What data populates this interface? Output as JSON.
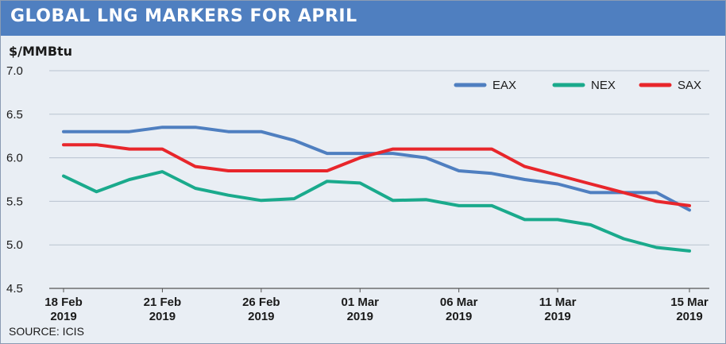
{
  "header": {
    "title": "GLOBAL LNG MARKERS FOR APRIL"
  },
  "source": "SOURCE: ICIS",
  "chart_data": {
    "type": "line",
    "title": "GLOBAL LNG MARKERS FOR APRIL",
    "ylabel": "$/MMBtu",
    "ylim": [
      4.5,
      7.0
    ],
    "yticks": [
      "7.0",
      "6.5",
      "6.0",
      "5.5",
      "5.0",
      "4.5"
    ],
    "grid": true,
    "legend_position": "top-right",
    "x": [
      "18 Feb 2019",
      "19 Feb 2019",
      "20 Feb 2019",
      "21 Feb 2019",
      "22 Feb 2019",
      "25 Feb 2019",
      "26 Feb 2019",
      "27 Feb 2019",
      "28 Feb 2019",
      "01 Mar 2019",
      "04 Mar 2019",
      "05 Mar 2019",
      "06 Mar 2019",
      "07 Mar 2019",
      "08 Mar 2019",
      "11 Mar 2019",
      "12 Mar 2019",
      "13 Mar 2019",
      "14 Mar 2019",
      "15 Mar 2019"
    ],
    "xticks": [
      {
        "day": "18 Feb",
        "year": "2019",
        "index": 0
      },
      {
        "day": "21 Feb",
        "year": "2019",
        "index": 3
      },
      {
        "day": "26 Feb",
        "year": "2019",
        "index": 6
      },
      {
        "day": "01 Mar",
        "year": "2019",
        "index": 9
      },
      {
        "day": "06 Mar",
        "year": "2019",
        "index": 12
      },
      {
        "day": "11 Mar",
        "year": "2019",
        "index": 15
      },
      {
        "day": "15 Mar",
        "year": "2019",
        "index": 19
      }
    ],
    "series": [
      {
        "name": "EAX",
        "color": "#4f7fc0",
        "values": [
          6.3,
          6.3,
          6.3,
          6.35,
          6.35,
          6.3,
          6.3,
          6.2,
          6.05,
          6.05,
          6.05,
          6.0,
          5.85,
          5.82,
          5.75,
          5.7,
          5.6,
          5.6,
          5.6,
          5.4
        ]
      },
      {
        "name": "NEX",
        "color": "#1aaa8c",
        "values": [
          5.79,
          5.61,
          5.75,
          5.84,
          5.65,
          5.57,
          5.51,
          5.53,
          5.73,
          5.71,
          5.51,
          5.52,
          5.45,
          5.45,
          5.29,
          5.29,
          5.23,
          5.07,
          4.97,
          4.93
        ]
      },
      {
        "name": "SAX",
        "color": "#e8262b",
        "values": [
          6.15,
          6.15,
          6.1,
          6.1,
          5.9,
          5.85,
          5.85,
          5.85,
          5.85,
          6.0,
          6.1,
          6.1,
          6.1,
          6.1,
          5.9,
          5.8,
          5.7,
          5.6,
          5.5,
          5.45
        ]
      }
    ]
  }
}
